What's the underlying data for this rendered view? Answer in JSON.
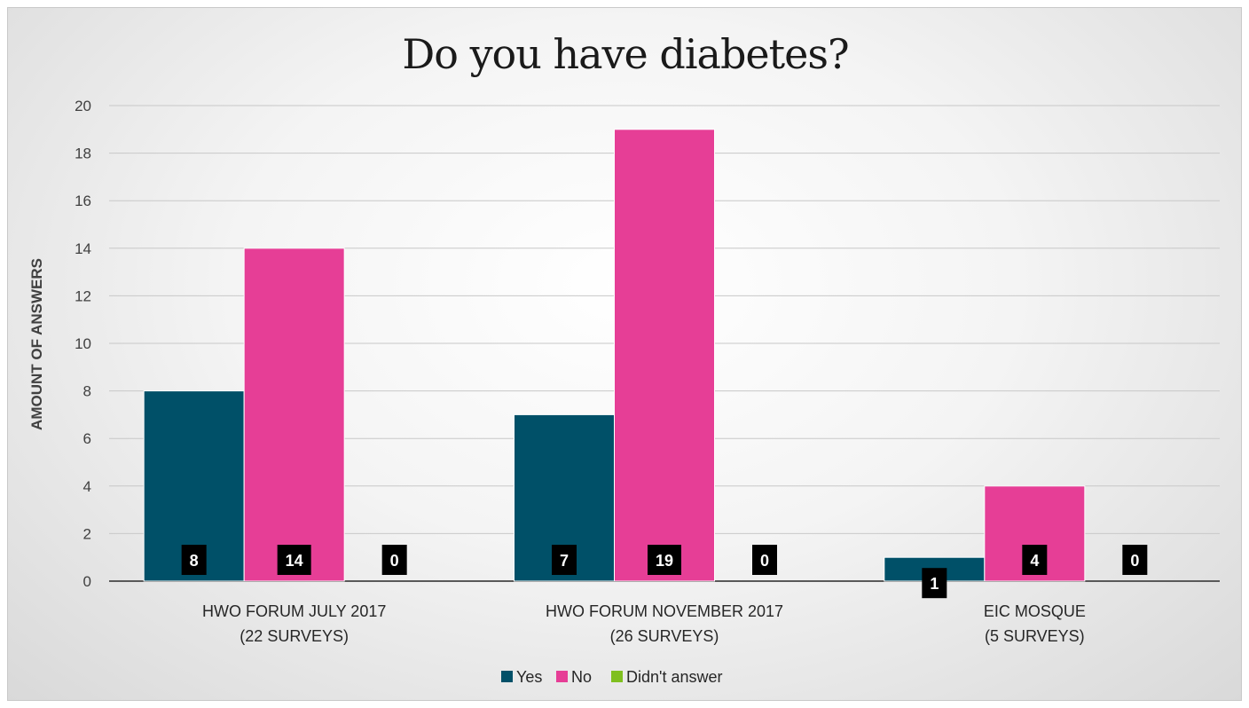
{
  "chart_data": {
    "type": "bar",
    "title": "Do you have diabetes?",
    "ylabel": "AMOUNT OF ANSWERS",
    "xlabel": "",
    "ylim": [
      0,
      20
    ],
    "yticks": [
      0,
      2,
      4,
      6,
      8,
      10,
      12,
      14,
      16,
      18,
      20
    ],
    "grid": true,
    "legend_position": "bottom",
    "categories": [
      [
        "HWO FORUM JULY 2017",
        "(22 SURVEYS)"
      ],
      [
        "HWO FORUM NOVEMBER 2017",
        "(26 SURVEYS)"
      ],
      [
        "EIC MOSQUE",
        "(5 SURVEYS)"
      ]
    ],
    "series": [
      {
        "name": "Yes",
        "color": "#005068",
        "values": [
          8,
          7,
          1
        ]
      },
      {
        "name": "No",
        "color": "#e63e96",
        "values": [
          14,
          19,
          4
        ]
      },
      {
        "name": "Didn't answer",
        "color": "#7fbf1f",
        "values": [
          0,
          0,
          0
        ]
      }
    ]
  }
}
